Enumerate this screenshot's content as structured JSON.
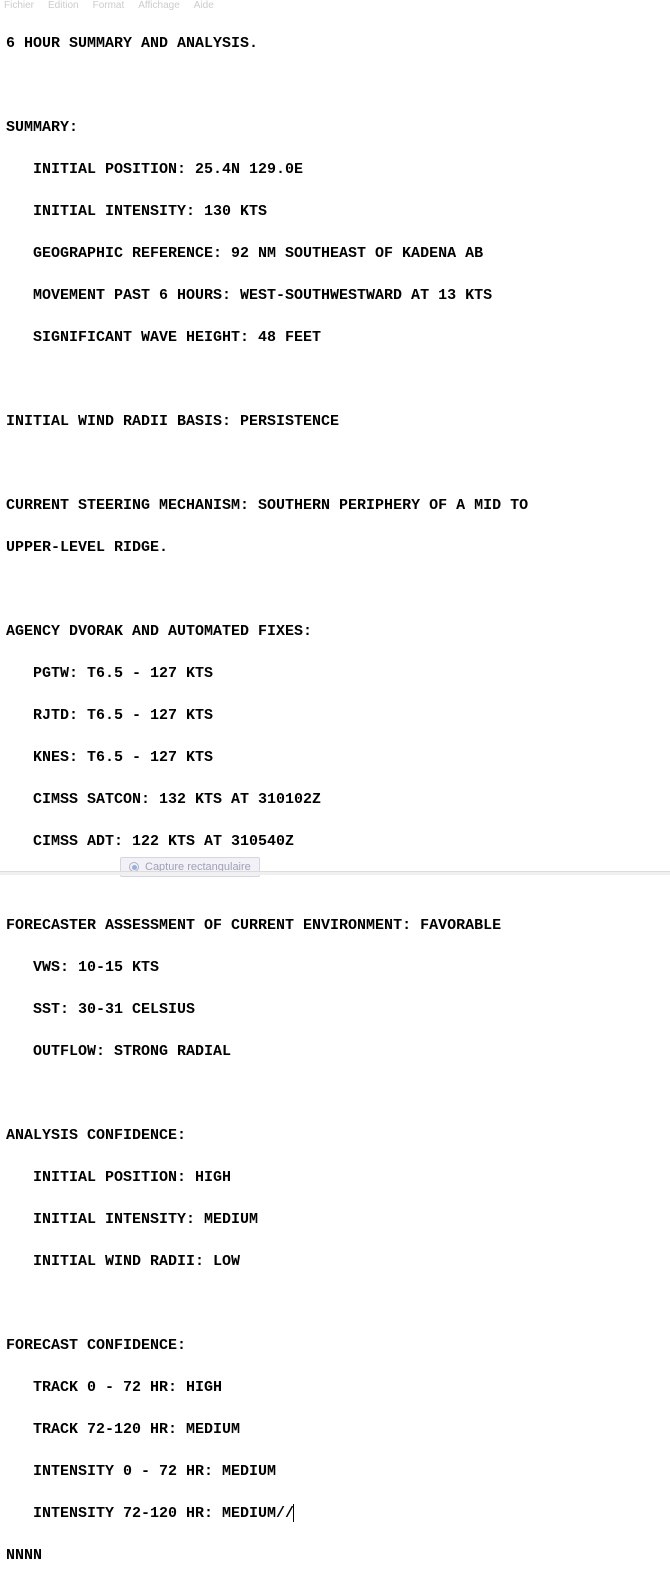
{
  "menubar": {
    "items": [
      "Fichier",
      "Edition",
      "Format",
      "Affichage",
      "Aide"
    ]
  },
  "document": {
    "title": "6 HOUR SUMMARY AND ANALYSIS.",
    "summary": {
      "header": "SUMMARY:",
      "initial_position": "INITIAL POSITION: 25.4N 129.0E",
      "initial_intensity": "INITIAL INTENSITY: 130 KTS",
      "geographic_reference": "GEOGRAPHIC REFERENCE: 92 NM SOUTHEAST OF KADENA AB",
      "movement": "MOVEMENT PAST 6 HOURS: WEST-SOUTHWESTWARD AT 13 KTS",
      "wave_height": "SIGNIFICANT WAVE HEIGHT: 48 FEET"
    },
    "wind_radii_basis": "INITIAL WIND RADII BASIS: PERSISTENCE",
    "steering": {
      "line1": "CURRENT STEERING MECHANISM: SOUTHERN PERIPHERY OF A MID TO",
      "line2": "UPPER-LEVEL RIDGE."
    },
    "dvorak": {
      "header": "AGENCY DVORAK AND AUTOMATED FIXES:",
      "pgtw": "PGTW: T6.5 - 127 KTS",
      "rjtd": "RJTD: T6.5 - 127 KTS",
      "knes": "KNES: T6.5 - 127 KTS",
      "cimss_satcon": "CIMSS SATCON: 132 KTS AT 310102Z",
      "cimss_adt": "CIMSS ADT: 122 KTS AT 310540Z"
    },
    "environment": {
      "header": "FORECASTER ASSESSMENT OF CURRENT ENVIRONMENT: FAVORABLE",
      "vws": "VWS: 10-15 KTS",
      "sst": "SST: 30-31 CELSIUS",
      "outflow": "OUTFLOW: STRONG RADIAL"
    },
    "analysis_confidence": {
      "header": "ANALYSIS CONFIDENCE:",
      "position": "INITIAL POSITION: HIGH",
      "intensity": "INITIAL INTENSITY: MEDIUM",
      "wind_radii": "INITIAL WIND RADII: LOW"
    },
    "forecast_confidence": {
      "header": "FORECAST CONFIDENCE:",
      "track1": "TRACK 0 - 72 HR: HIGH",
      "track2": "TRACK 72-120 HR: MEDIUM",
      "intensity1": "INTENSITY 0 - 72 HR: MEDIUM",
      "intensity2": "INTENSITY 72-120 HR: MEDIUM//"
    },
    "terminator": "NNNN"
  },
  "snip_tool": {
    "label": "Capture rectangulaire"
  },
  "colors": {
    "background": "#ffffff",
    "text": "#000000",
    "menu_text": "#cccccc",
    "overlay_bg": "rgba(230,230,240,0.55)"
  },
  "typography": {
    "font_family": "Courier New",
    "font_size_pt": 11,
    "font_weight": "bold",
    "line_height": 1.4
  }
}
